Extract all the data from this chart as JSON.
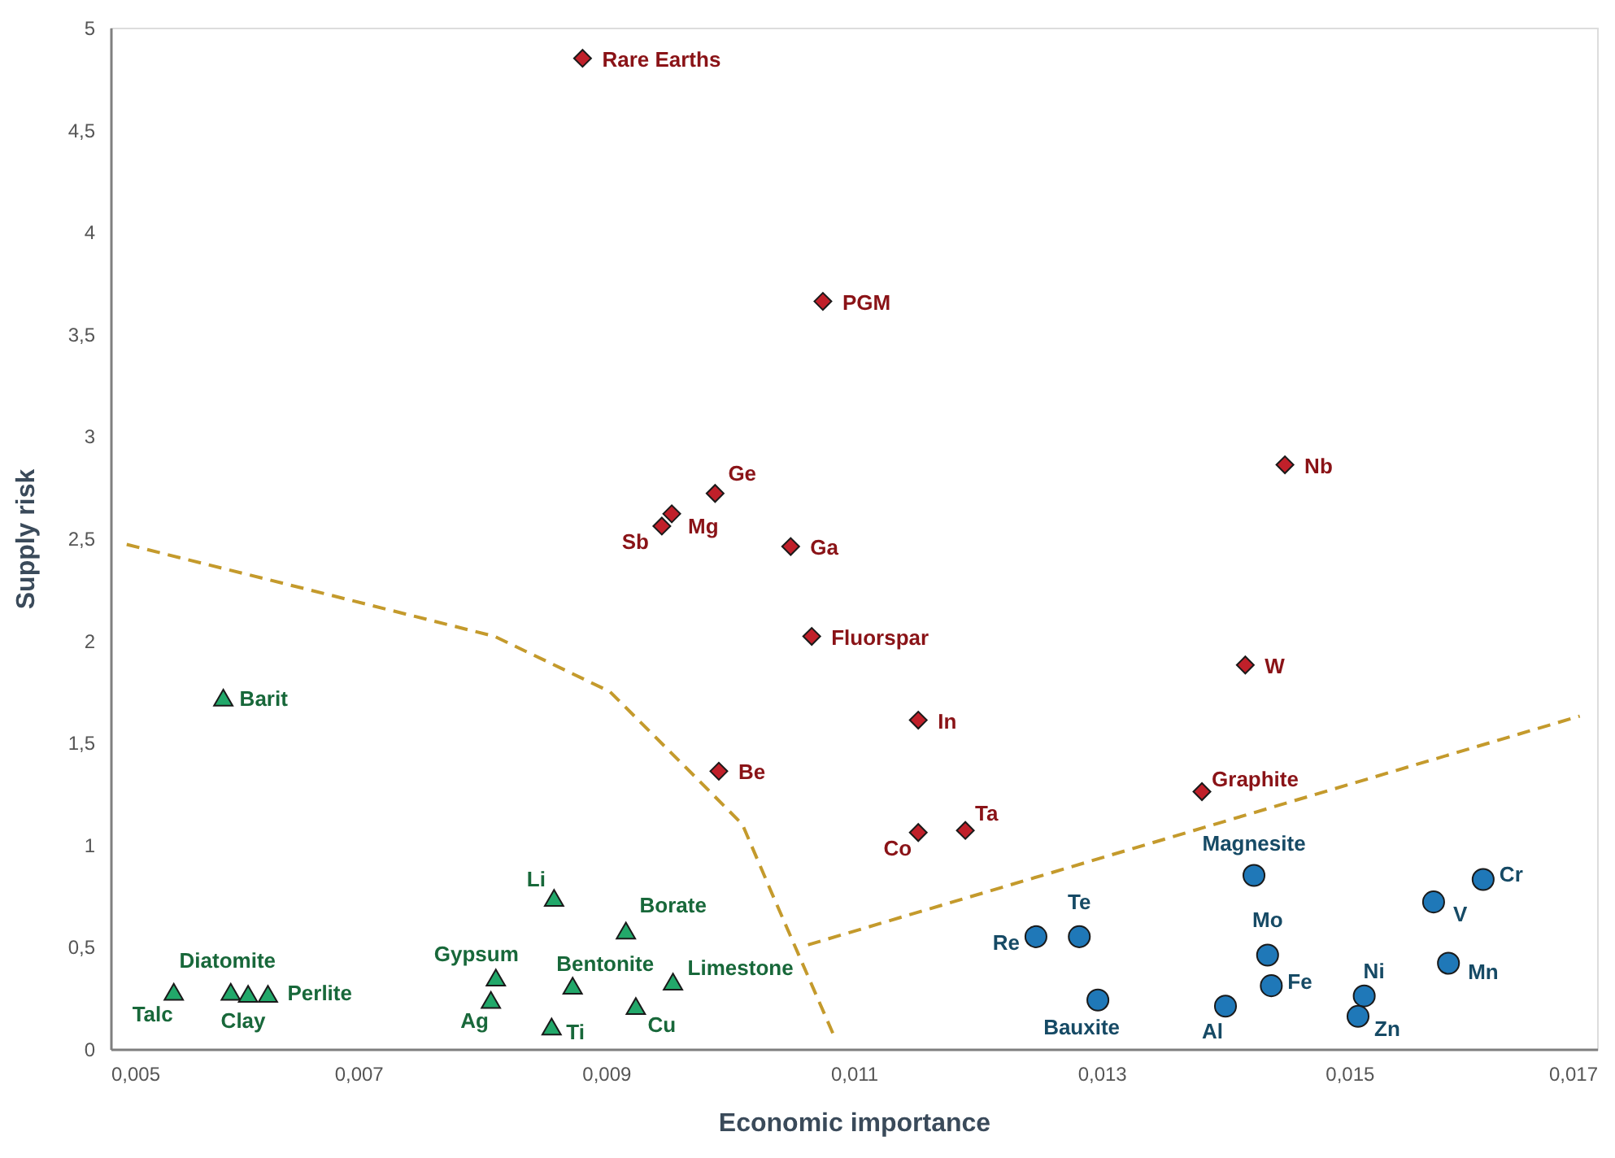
{
  "chart_data": {
    "type": "scatter",
    "xlabel": "Economic importance",
    "ylabel": "Supply risk",
    "xlim": [
      0.005,
      0.017
    ],
    "ylim": [
      0,
      5
    ],
    "xticks": [
      {
        "value": 0.005,
        "label": "0,005"
      },
      {
        "value": 0.007,
        "label": "0,007"
      },
      {
        "value": 0.009,
        "label": "0,009"
      },
      {
        "value": 0.011,
        "label": "0,011"
      },
      {
        "value": 0.013,
        "label": "0,013"
      },
      {
        "value": 0.015,
        "label": "0,015"
      },
      {
        "value": 0.017,
        "label": "0,017"
      }
    ],
    "yticks": [
      0,
      {
        "value": 0.5,
        "label": "0,5"
      },
      1,
      {
        "value": 1.5,
        "label": "1,5"
      },
      2,
      {
        "value": 2.5,
        "label": "2,5"
      },
      3,
      {
        "value": 3.5,
        "label": "3,5"
      },
      4,
      {
        "value": 4.5,
        "label": "4,5"
      },
      5
    ],
    "series": [
      {
        "marker": "diamond",
        "color": "#c0202a",
        "x": [
          0.00881,
          0.01075,
          0.00988,
          0.00953,
          0.00945,
          0.01049,
          0.01066,
          0.01152,
          0.00991,
          0.01152,
          0.0119,
          0.01381,
          0.01416,
          0.01448
        ],
        "values": [
          4.85,
          3.66,
          2.72,
          2.62,
          2.56,
          2.46,
          2.02,
          1.61,
          1.36,
          1.06,
          1.07,
          1.26,
          1.88,
          2.86
        ]
      },
      {
        "marker": "circle",
        "color": "#1f78b8",
        "x": [
          0.01423,
          0.01608,
          0.01568,
          0.01282,
          0.01247,
          0.01434,
          0.0158,
          0.01437,
          0.01297,
          0.01512,
          0.014,
          0.01507
        ],
        "values": [
          0.85,
          0.83,
          0.72,
          0.55,
          0.55,
          0.46,
          0.42,
          0.31,
          0.24,
          0.26,
          0.21,
          0.16
        ]
      },
      {
        "marker": "triangle",
        "color": "#22a86a",
        "x": [
          0.00591,
          0.00551,
          0.00597,
          0.00611,
          0.00627,
          0.00811,
          0.00807,
          0.00858,
          0.00856,
          0.00873,
          0.00916,
          0.00924,
          0.00954
        ],
        "values": [
          1.72,
          0.28,
          0.28,
          0.27,
          0.27,
          0.35,
          0.24,
          0.74,
          0.11,
          0.31,
          0.58,
          0.21,
          0.33
        ]
      },
      {
        "type": "line",
        "line_style": "dashed",
        "color": "#c49a2c",
        "x": [
          0.00513,
          0.00659,
          0.0081,
          0.00903,
          0.00974,
          0.0101,
          0.01034,
          0.01085
        ],
        "values": [
          2.47,
          2.25,
          2.02,
          1.75,
          1.32,
          1.1,
          0.76,
          0.05
        ]
      },
      {
        "type": "line",
        "line_style": "dashed",
        "color": "#c49a2c",
        "x": [
          0.01063,
          0.01686
        ],
        "values": [
          0.51,
          1.63
        ]
      }
    ],
    "annotations": [
      {
        "text": "Rare Earths",
        "x": 0.00881,
        "y": 4.85
      },
      {
        "text": "PGM",
        "x": 0.01075,
        "y": 3.66
      },
      {
        "text": "Ge",
        "x": 0.00988,
        "y": 2.72
      },
      {
        "text": "Mg",
        "x": 0.00953,
        "y": 2.62
      },
      {
        "text": "Sb",
        "x": 0.00945,
        "y": 2.56
      },
      {
        "text": "Ga",
        "x": 0.01049,
        "y": 2.46
      },
      {
        "text": "Fluorspar",
        "x": 0.01066,
        "y": 2.02
      },
      {
        "text": "In",
        "x": 0.01152,
        "y": 1.61
      },
      {
        "text": "Be",
        "x": 0.00991,
        "y": 1.36
      },
      {
        "text": "Co",
        "x": 0.01152,
        "y": 1.06
      },
      {
        "text": "Ta",
        "x": 0.0119,
        "y": 1.07
      },
      {
        "text": "Graphite",
        "x": 0.01381,
        "y": 1.26
      },
      {
        "text": "W",
        "x": 0.01416,
        "y": 1.88
      },
      {
        "text": "Nb",
        "x": 0.01448,
        "y": 2.86
      },
      {
        "text": "Magnesite",
        "x": 0.01423,
        "y": 0.85
      },
      {
        "text": "Cr",
        "x": 0.01608,
        "y": 0.83
      },
      {
        "text": "V",
        "x": 0.01568,
        "y": 0.72
      },
      {
        "text": "Te",
        "x": 0.01282,
        "y": 0.55
      },
      {
        "text": "Re",
        "x": 0.01247,
        "y": 0.55
      },
      {
        "text": "Mo",
        "x": 0.01434,
        "y": 0.46
      },
      {
        "text": "Mn",
        "x": 0.0158,
        "y": 0.42
      },
      {
        "text": "Fe",
        "x": 0.01437,
        "y": 0.31
      },
      {
        "text": "Bauxite",
        "x": 0.01297,
        "y": 0.24
      },
      {
        "text": "Ni",
        "x": 0.01512,
        "y": 0.26
      },
      {
        "text": "Al",
        "x": 0.014,
        "y": 0.21
      },
      {
        "text": "Zn",
        "x": 0.01507,
        "y": 0.16
      },
      {
        "text": "Barit",
        "x": 0.00591,
        "y": 1.72
      },
      {
        "text": "Talc",
        "x": 0.00551,
        "y": 0.28
      },
      {
        "text": "Diatomite",
        "x": 0.00597,
        "y": 0.28
      },
      {
        "text": "Clay",
        "x": 0.00611,
        "y": 0.27
      },
      {
        "text": "Perlite",
        "x": 0.00627,
        "y": 0.27
      },
      {
        "text": "Gypsum",
        "x": 0.00811,
        "y": 0.35
      },
      {
        "text": "Ag",
        "x": 0.00807,
        "y": 0.24
      },
      {
        "text": "Li",
        "x": 0.00858,
        "y": 0.74
      },
      {
        "text": "Ti",
        "x": 0.00856,
        "y": 0.11
      },
      {
        "text": "Bentonite",
        "x": 0.00873,
        "y": 0.31
      },
      {
        "text": "Borate",
        "x": 0.00916,
        "y": 0.58
      },
      {
        "text": "Cu",
        "x": 0.00924,
        "y": 0.21
      },
      {
        "text": "Limestone",
        "x": 0.00954,
        "y": 0.33
      }
    ]
  }
}
